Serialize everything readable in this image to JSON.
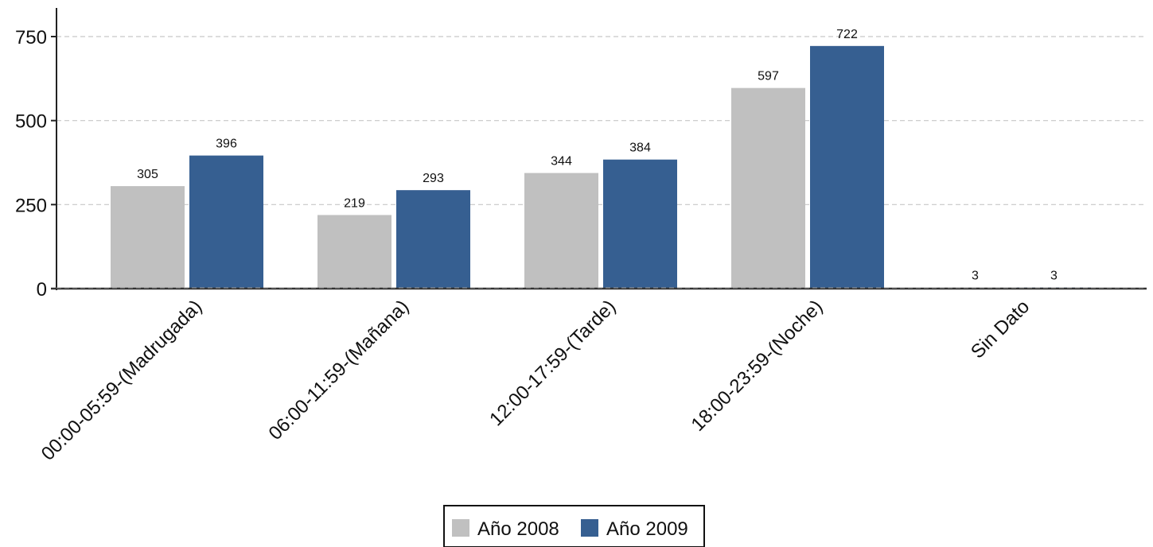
{
  "chart_data": {
    "type": "bar",
    "categories": [
      "00:00-05:59-(Madrugada)",
      "06:00-11:59-(Mañana)",
      "12:00-17:59-(Tarde)",
      "18:00-23:59-(Noche)",
      "Sin Dato"
    ],
    "series": [
      {
        "name": "Año 2008",
        "values": [
          305,
          219,
          344,
          597,
          3
        ],
        "color": "#c0c0c0"
      },
      {
        "name": "Año 2009",
        "values": [
          396,
          293,
          384,
          722,
          3
        ],
        "color": "#365f91"
      }
    ],
    "yticks": [
      0,
      250,
      500,
      750
    ],
    "ylim": [
      0,
      750
    ],
    "grid": true,
    "legend_position": "bottom-center"
  }
}
